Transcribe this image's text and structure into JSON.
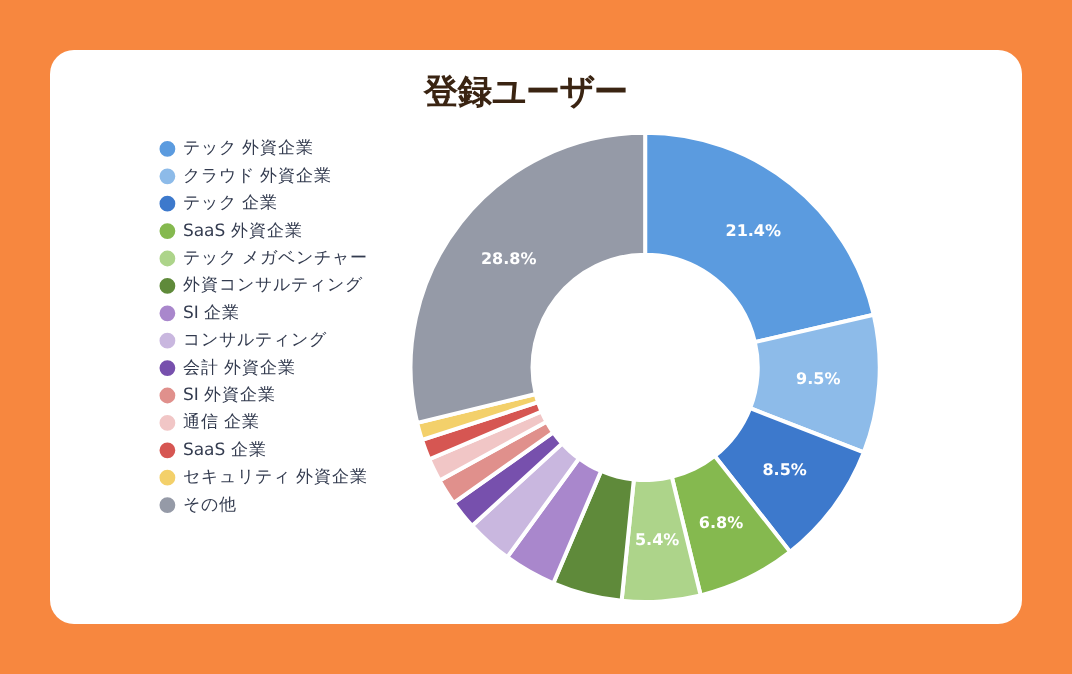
{
  "chart_data": {
    "type": "donut",
    "title": "登録ユーザー",
    "categories": [
      "テック 外資企業",
      "クラウド 外資企業",
      "テック 企業",
      "SaaS 外資企業",
      "テック メガベンチャー",
      "外資コンサルティング",
      "SI 企業",
      "コンサルティング",
      "会計 外資企業",
      "SI 外資企業",
      "通信 企業",
      "SaaS 企業",
      "セキュリティ 外資企業",
      "その他"
    ],
    "values": [
      21.4,
      9.5,
      8.5,
      6.8,
      5.4,
      4.8,
      3.6,
      3.2,
      2.0,
      1.8,
      1.6,
      1.4,
      1.2,
      28.8
    ],
    "value_labels": [
      "21.4%",
      "9.5%",
      "8.5%",
      "6.8%",
      "5.4%",
      null,
      null,
      null,
      null,
      null,
      null,
      null,
      null,
      "28.8%"
    ],
    "colors": [
      "#5b9bdf",
      "#8dbbe9",
      "#3d79cc",
      "#85b94f",
      "#add48a",
      "#5f8a3a",
      "#a987cc",
      "#c9b7df",
      "#7750ad",
      "#e0908c",
      "#f1c6c6",
      "#d65652",
      "#f3d06a",
      "#959aa7"
    ],
    "legend": "left"
  }
}
